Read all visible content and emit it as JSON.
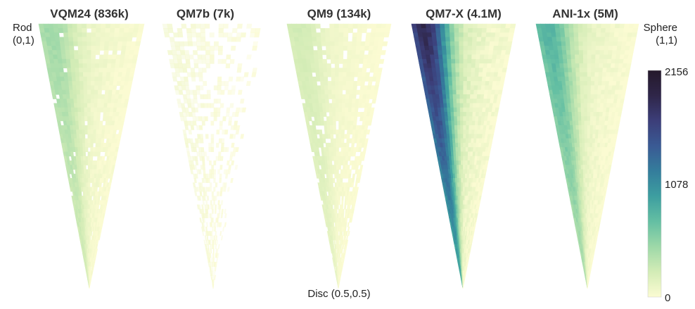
{
  "chart_data": {
    "type": "heatmap",
    "description_axes": "",
    "panels": [
      {
        "title": "VQM24 (836k)",
        "max_density": 0.55,
        "band_strength": 0.35,
        "sparsity": 0.05
      },
      {
        "title": "QM7b (7k)",
        "max_density": 0.12,
        "band_strength": 0.1,
        "sparsity": 0.85
      },
      {
        "title": "QM9 (134k)",
        "max_density": 0.32,
        "band_strength": 0.3,
        "sparsity": 0.2
      },
      {
        "title": "QM7-X (4.1M)",
        "max_density": 1.0,
        "band_strength": 1.0,
        "sparsity": 0.0
      },
      {
        "title": "ANI-1x (5M)",
        "max_density": 0.7,
        "band_strength": 0.55,
        "sparsity": 0.0
      }
    ],
    "corner_labels": {
      "rod_name": "Rod",
      "rod_coord": "(0,1)",
      "sphere_name": "Sphere",
      "sphere_coord": "(1,1)",
      "disc": "Disc (0.5,0.5)"
    },
    "colorbar": {
      "min": 0,
      "mid": 1078,
      "max": 2156,
      "tick_labels": [
        "2156",
        "1078",
        "0"
      ],
      "colormap": [
        "#fbfbd2",
        "#d3ecb6",
        "#9dd8a8",
        "#64bfa3",
        "#3d9ea0",
        "#347d9c",
        "#3a5a94",
        "#3c3e79",
        "#2f2649",
        "#25192b"
      ]
    }
  }
}
